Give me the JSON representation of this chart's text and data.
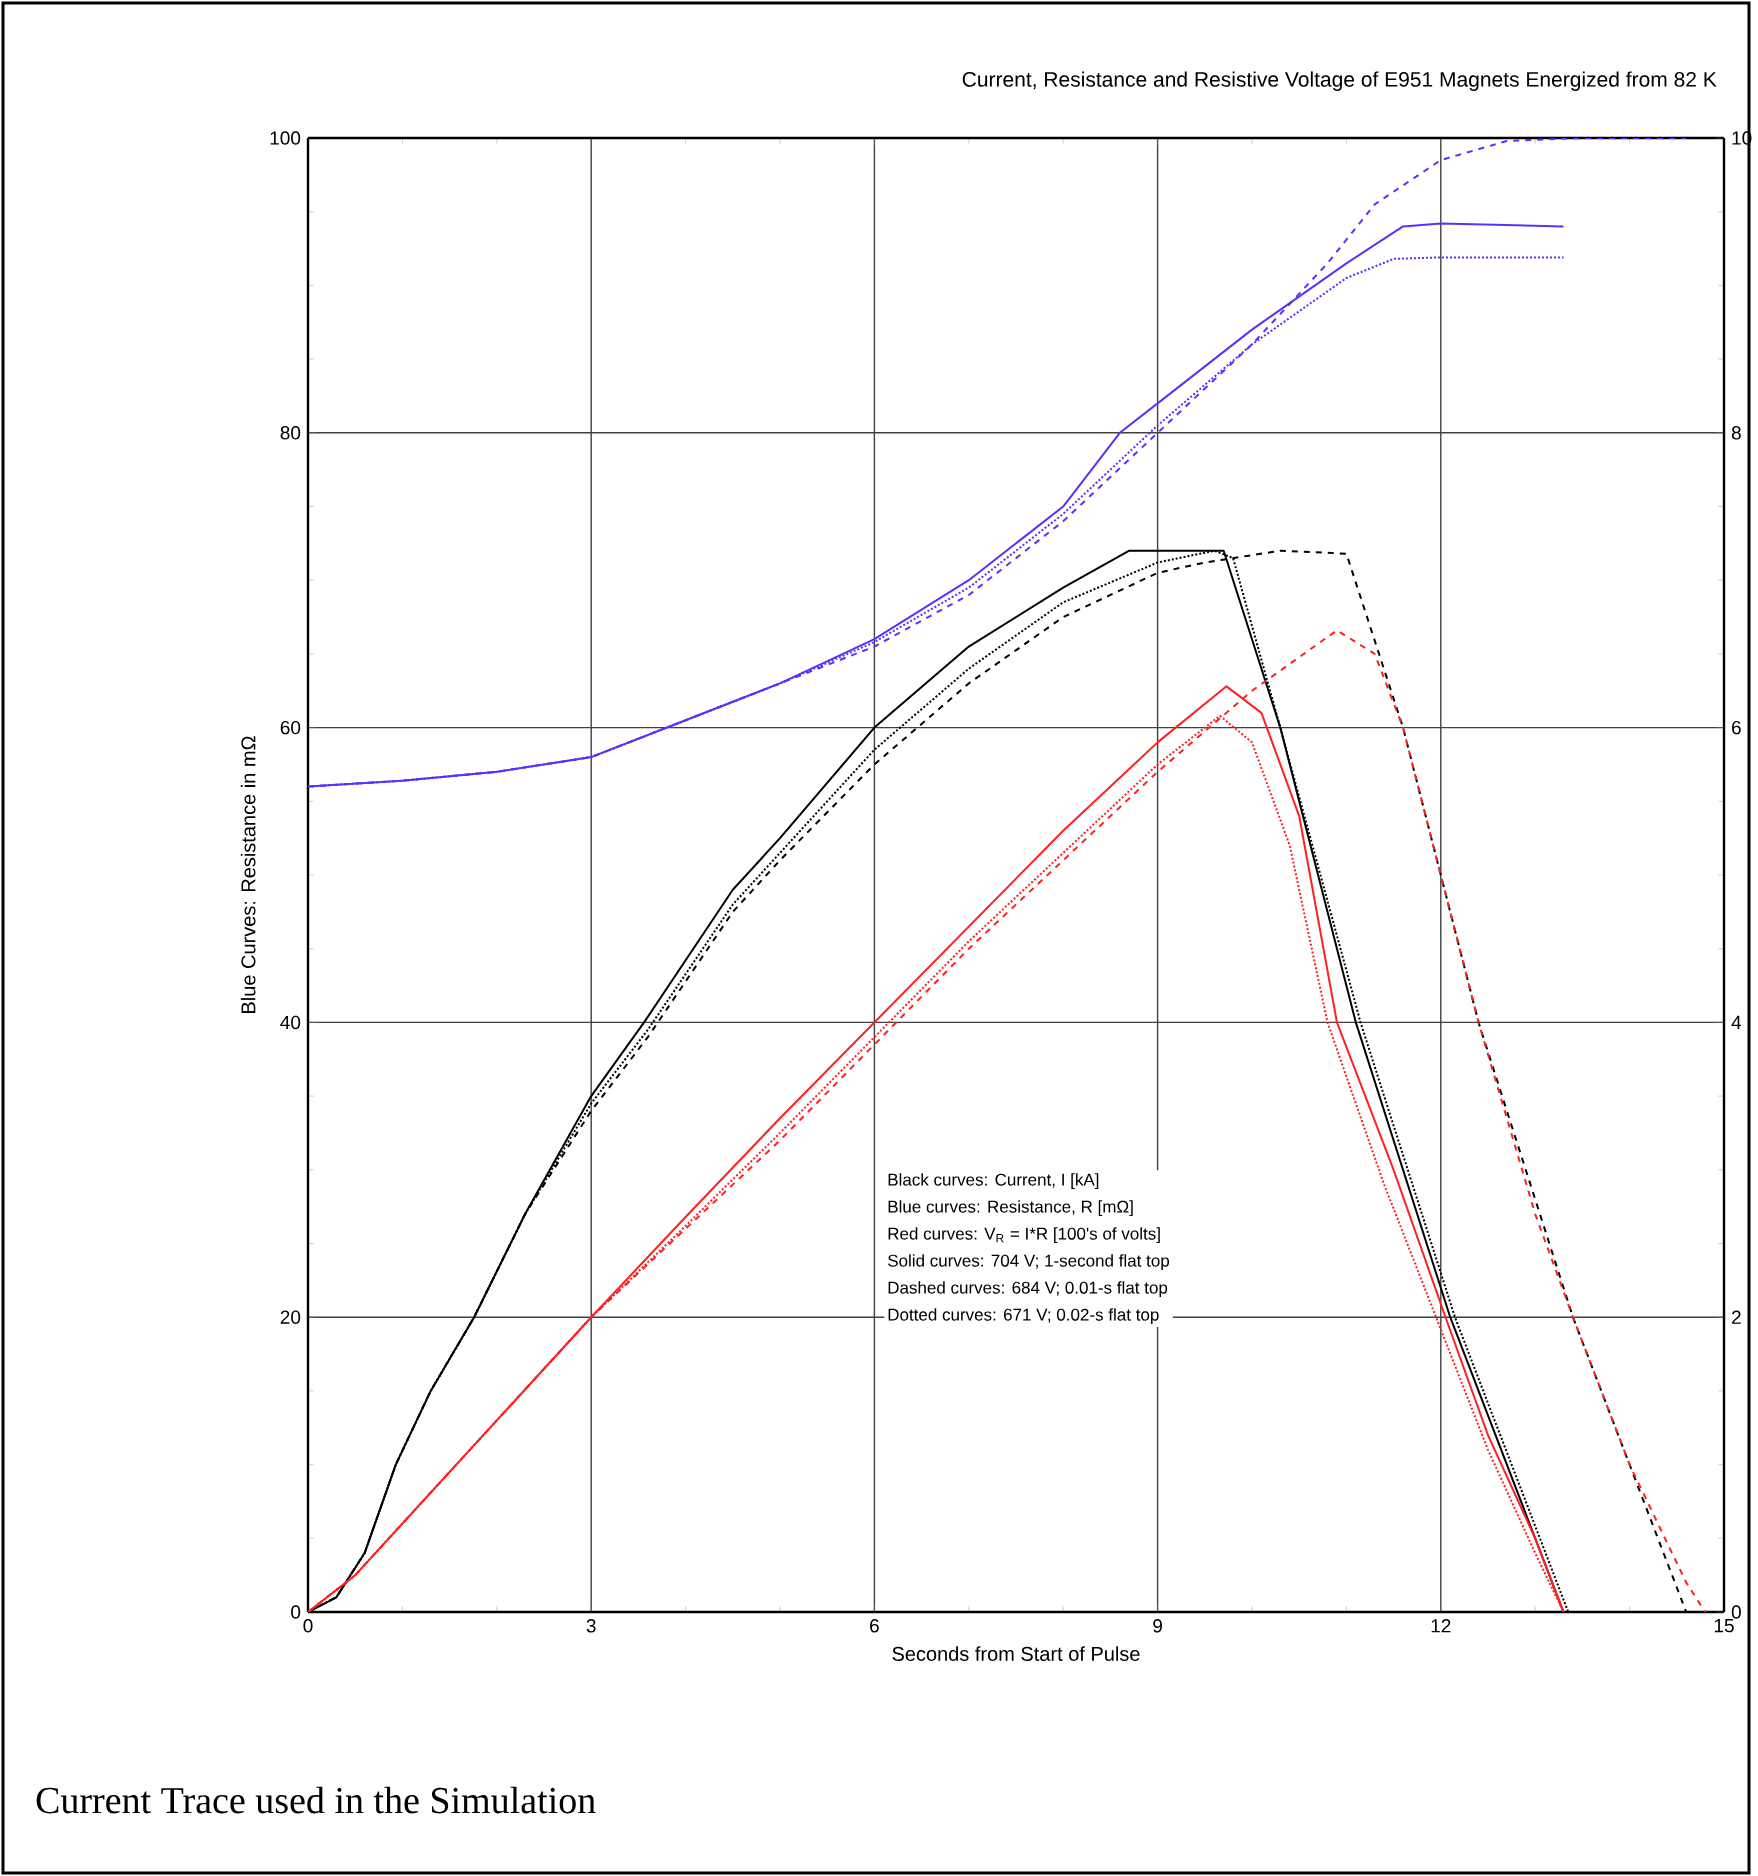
{
  "chart_data": {
    "type": "line",
    "title": "Current, Resistance and Resistive Voltage of E951 Magnets Energized from 82 K",
    "xlabel": "Seconds from Start of Pulse",
    "ylabel": "Blue Curves: Resistance in mΩ",
    "xlim": [
      0,
      15
    ],
    "xticks": [
      0,
      3,
      6,
      9,
      12,
      15
    ],
    "ylim": [
      0,
      100
    ],
    "yticks": [
      0,
      20,
      40,
      60,
      80,
      100
    ],
    "y2lim": [
      0,
      10
    ],
    "y2ticks": [
      0,
      2,
      4,
      6,
      8,
      10
    ],
    "grid": true,
    "annotations": [
      "Black curves:  Current, I  [kA]",
      "Blue curves:  Resistance, R  [mΩ]",
      "Red curves:  V$_{R}$ = I*R  [100's of volts]",
      "Solid curves:  704 V; 1-second flat top",
      "Dashed curves:  684 V; 0.01-s flat top",
      "Dotted curves:  671 V; 0.02-s flat top",
      "Current Trace used in the Simulation"
    ],
    "series": [
      {
        "color": "#5533ff",
        "line_style": "solid",
        "x": [
          0,
          1,
          2,
          3,
          4,
          5,
          6,
          7,
          8,
          8.6,
          9,
          10,
          11,
          11.6,
          12,
          13.3
        ],
        "values": [
          56,
          56.4,
          57,
          58,
          60.5,
          63,
          66,
          70,
          75,
          80,
          82,
          87,
          91.5,
          94,
          94.2,
          94
        ]
      },
      {
        "color": "#5533ff",
        "line_style": "dotted",
        "x": [
          0,
          1,
          2,
          3,
          4,
          5,
          6,
          7,
          8,
          9,
          10,
          11,
          11.5,
          12,
          13.3
        ],
        "values": [
          56,
          56.4,
          57,
          58,
          60.5,
          63,
          65.8,
          69.5,
          74.5,
          80.5,
          86,
          90.5,
          91.8,
          91.9,
          91.9
        ]
      },
      {
        "color": "#5533ff",
        "line_style": "dashed",
        "x": [
          0,
          1,
          2,
          3,
          4,
          5,
          6,
          7,
          8,
          9,
          10,
          10.8,
          11.3,
          12,
          12.7,
          13.5,
          14.6
        ],
        "values": [
          56,
          56.4,
          57,
          58,
          60.5,
          63,
          65.5,
          69,
          74,
          80,
          86,
          91.5,
          95.5,
          98.5,
          99.8,
          100,
          100
        ]
      },
      {
        "color": "#000000",
        "line_style": "solid",
        "x": [
          0,
          0.3,
          0.6,
          0.93,
          1.3,
          1.76,
          2.3,
          3,
          3.56,
          4.5,
          5,
          6,
          7,
          8,
          8.7,
          9.7,
          10.3,
          11.1,
          12.1,
          12.7,
          13.3
        ],
        "values": [
          0,
          1,
          4,
          10,
          15,
          20,
          27,
          35,
          40,
          49,
          52.5,
          60,
          65.5,
          69.5,
          72,
          72,
          60,
          40,
          20,
          10,
          0
        ]
      },
      {
        "color": "#000000",
        "line_style": "dotted",
        "x": [
          0,
          0.3,
          0.6,
          0.93,
          1.3,
          1.76,
          2.3,
          3,
          3.6,
          4.5,
          5,
          6,
          7,
          8,
          9,
          9.6,
          9.8,
          10.3,
          11.15,
          12.15,
          12.75,
          13.35
        ],
        "values": [
          0,
          1,
          4,
          10,
          15,
          20,
          27,
          34.5,
          39.5,
          48,
          51.5,
          58.5,
          64,
          68.5,
          71.2,
          72,
          71.5,
          60,
          40,
          20,
          10,
          0
        ]
      },
      {
        "color": "#000000",
        "line_style": "dashed",
        "x": [
          0,
          0.3,
          0.6,
          0.93,
          1.3,
          1.76,
          2.3,
          3,
          3.6,
          4.5,
          5,
          6,
          7,
          8,
          9,
          9.5,
          10.3,
          11,
          11.6,
          12.4,
          13.4,
          14,
          14.6
        ],
        "values": [
          0,
          1,
          4,
          10,
          15,
          20,
          27,
          34,
          39,
          47.5,
          51,
          57.5,
          63,
          67.5,
          70.5,
          71.2,
          72,
          71.8,
          60,
          40,
          20,
          10,
          0
        ]
      },
      {
        "color": "#ff2020",
        "line_style": "solid",
        "x": [
          0,
          0.5,
          1,
          2,
          3,
          4,
          5,
          6,
          7,
          8,
          9,
          9.73,
          10.1,
          10.5,
          10.9,
          11.5,
          12.05,
          12.5,
          13,
          13.3
        ],
        "values": [
          0,
          2.5,
          6,
          13,
          20,
          26.8,
          33.5,
          40,
          46.5,
          53,
          59,
          62.8,
          61,
          54,
          40,
          30,
          20,
          12,
          5,
          0
        ]
      },
      {
        "color": "#ff2020",
        "line_style": "dotted",
        "x": [
          0,
          0.5,
          1,
          2,
          3,
          4,
          5,
          6,
          7,
          8,
          9,
          9.66,
          10,
          10.4,
          10.8,
          11.4,
          11.95,
          12.5,
          13,
          13.3
        ],
        "values": [
          0,
          2.5,
          6,
          13,
          20,
          26.2,
          32.5,
          39,
          45.5,
          51.5,
          57.5,
          60.8,
          59,
          52,
          40,
          29,
          20,
          11,
          4,
          0
        ]
      },
      {
        "color": "#ff2020",
        "line_style": "dashed",
        "x": [
          0,
          0.5,
          1,
          2,
          3,
          4,
          5,
          6,
          7,
          8,
          9,
          10,
          10.9,
          11.3,
          11.6,
          12,
          12.4,
          13,
          13.4,
          14,
          14.6,
          14.8
        ],
        "values": [
          0,
          2.5,
          6,
          13,
          20,
          26,
          32,
          38.5,
          45,
          51,
          57,
          62.5,
          66.6,
          65,
          60,
          50,
          40,
          27,
          20,
          10,
          2,
          0
        ]
      }
    ]
  }
}
